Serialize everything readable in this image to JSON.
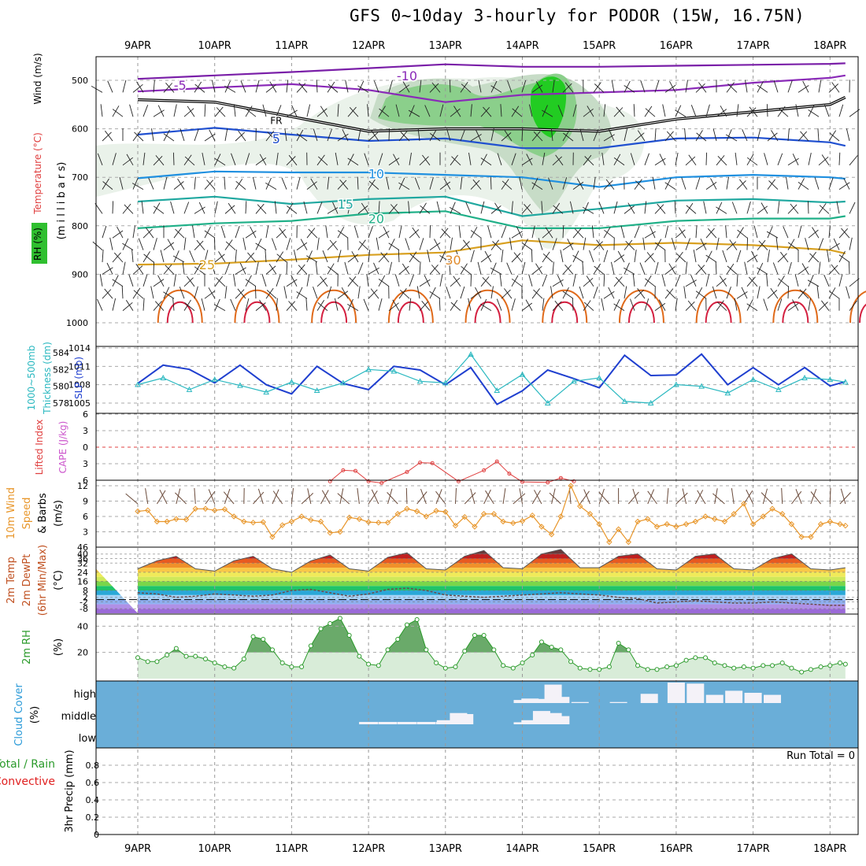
{
  "title": "GFS 0~10day 3-hourly for PODOR (15W, 16.75N)",
  "date_labels": [
    "9APR",
    "10APR",
    "11APR",
    "12APR",
    "13APR",
    "14APR",
    "15APR",
    "16APR",
    "17APR",
    "18APR"
  ],
  "run_total_label": "Run Total = 0",
  "colors": {
    "slp": "#1f3fcf",
    "thickness": "#2ab8c0",
    "cape": "#cc55cc",
    "lifted": "#e04040",
    "wind": "#e8962a",
    "rh": "#2a9a2a",
    "cloud_bg": "#6aaed8",
    "cloud_bar": "#f4f2f8",
    "precip_total": "#2a9a2a",
    "precip_conv": "#e02020"
  },
  "chart_data": [
    {
      "panel": "cross-section",
      "type": "heatmap",
      "ylabel": [
        "(m i l l i b a r s)",
        "Wind (m/s)",
        "Temperature (°C)",
        "RH (%)"
      ],
      "yticks": [
        500,
        600,
        700,
        800,
        900,
        1000
      ],
      "contour_labels": [
        {
          "text": "-10",
          "series": "temperature"
        },
        {
          "text": "-5",
          "series": "temperature"
        },
        {
          "text": "FR",
          "series": "freezing_level"
        },
        {
          "text": "5",
          "series": "temperature"
        },
        {
          "text": "10",
          "series": "temperature"
        },
        {
          "text": "15",
          "series": "temperature"
        },
        {
          "text": "20",
          "series": "temperature"
        },
        {
          "text": "25",
          "series": "temperature"
        },
        {
          "text": "30",
          "series": "temperature"
        }
      ],
      "isotherms": [
        {
          "name": "-10",
          "color": "#7a1fa8",
          "x": [
            0,
            1,
            2,
            3,
            4,
            5,
            6,
            7,
            8,
            9,
            9.2
          ],
          "y": [
            497,
            490,
            483,
            475,
            467,
            472,
            472,
            470,
            468,
            466,
            465
          ]
        },
        {
          "name": "-5",
          "color": "#8a2ab8",
          "x": [
            0,
            1,
            2,
            3,
            4,
            5,
            6,
            7,
            8,
            9,
            9.2
          ],
          "y": [
            523,
            515,
            508,
            520,
            545,
            530,
            525,
            520,
            505,
            495,
            490
          ]
        },
        {
          "name": "FR",
          "color": "#000000",
          "x": [
            0,
            1,
            2,
            3,
            4,
            5,
            6,
            7,
            8,
            9,
            9.2
          ],
          "y": [
            540,
            545,
            575,
            605,
            600,
            600,
            605,
            580,
            565,
            550,
            535
          ]
        },
        {
          "name": "5",
          "color": "#2050d0",
          "x": [
            0,
            1,
            2,
            3,
            4,
            5,
            6,
            7,
            8,
            9,
            9.2
          ],
          "y": [
            612,
            598,
            612,
            625,
            620,
            640,
            640,
            620,
            618,
            628,
            635
          ]
        },
        {
          "name": "10",
          "color": "#2090e0",
          "x": [
            0,
            1,
            2,
            3,
            4,
            5,
            6,
            7,
            8,
            9,
            9.2
          ],
          "y": [
            702,
            688,
            690,
            690,
            695,
            700,
            720,
            700,
            695,
            700,
            703
          ]
        },
        {
          "name": "15",
          "color": "#20a8a0",
          "x": [
            0,
            1,
            2,
            3,
            4,
            5,
            6,
            7,
            8,
            9,
            9.2
          ],
          "y": [
            750,
            740,
            755,
            745,
            740,
            780,
            765,
            748,
            745,
            752,
            750
          ]
        },
        {
          "name": "20",
          "color": "#20b088",
          "x": [
            0,
            1,
            2,
            3,
            4,
            5,
            6,
            7,
            8,
            9,
            9.2
          ],
          "y": [
            805,
            795,
            790,
            775,
            770,
            805,
            805,
            790,
            785,
            785,
            780
          ]
        },
        {
          "name": "25",
          "color": "#d8a020",
          "x": [
            0,
            1,
            2,
            3,
            4,
            5,
            6,
            7,
            8,
            9,
            9.2
          ],
          "y": [
            880,
            878,
            870,
            860,
            855,
            830,
            840,
            835,
            840,
            850,
            857
          ]
        }
      ]
    },
    {
      "panel": "slp-thickness",
      "type": "line",
      "ylabel": [
        "1000~500mb",
        "Thickness (dm)",
        "SLP (mb)"
      ],
      "slp_ticks": [
        1005,
        1008,
        1011,
        1014
      ],
      "thickness_ticks": [
        578,
        580,
        582,
        584
      ],
      "x": [
        0,
        0.33,
        0.67,
        1,
        1.33,
        1.67,
        2,
        2.33,
        2.67,
        3,
        3.33,
        3.67,
        4,
        4.33,
        4.67,
        5,
        5.33,
        5.67,
        6,
        6.33,
        6.67,
        7,
        7.33,
        7.67,
        8,
        8.33,
        8.67,
        9,
        9.2
      ],
      "series": [
        {
          "name": "SLP (mb)",
          "axis": "left",
          "values": [
            1008.2,
            1011.2,
            1010.5,
            1008.3,
            1011.2,
            1008.0,
            1006.5,
            1011.0,
            1008.2,
            1007.2,
            1011.0,
            1010.4,
            1008.0,
            1010.8,
            1004.8,
            1007.0,
            1010.4,
            1009.0,
            1007.5,
            1012.8,
            1009.5,
            1009.6,
            1013.0,
            1008.0,
            1010.8,
            1008.0,
            1010.8,
            1007.8,
            1008.5
          ]
        },
        {
          "name": "Thickness (dm)",
          "axis": "right",
          "values": [
            580.2,
            581.0,
            579.6,
            580.8,
            580.1,
            579.3,
            580.5,
            579.5,
            580.4,
            582.0,
            581.8,
            580.6,
            580.4,
            583.8,
            579.5,
            581.4,
            578.0,
            580.6,
            581.0,
            578.2,
            578.0,
            580.2,
            580.0,
            579.2,
            580.8,
            579.6,
            581.0,
            580.8,
            580.5
          ]
        }
      ]
    },
    {
      "panel": "cape-lifted",
      "type": "line",
      "ylabel": [
        "Lifted Index",
        "CAPE (J/kg)"
      ],
      "yticks": [
        -6,
        -3,
        0,
        3,
        6
      ],
      "x": [
        2.5,
        2.67,
        2.83,
        3.0,
        3.17,
        3.5,
        3.67,
        3.83,
        4.17,
        4.5,
        4.67,
        4.83,
        5.0,
        5.33,
        5.5,
        5.67
      ],
      "series": [
        {
          "name": "Lifted Index",
          "values": [
            6.2,
            4.2,
            4.3,
            6.2,
            6.5,
            4.5,
            2.8,
            2.9,
            6.2,
            4.2,
            2.6,
            4.8,
            6.3,
            6.4,
            5.6,
            6.2
          ]
        }
      ]
    },
    {
      "panel": "10m-wind",
      "type": "line",
      "ylabel": [
        "10m Wind",
        "Speed",
        "& Barbs",
        "(m/s)"
      ],
      "yticks": [
        3,
        6,
        9,
        12
      ],
      "x": [
        0,
        0.13,
        0.25,
        0.38,
        0.5,
        0.63,
        0.75,
        0.88,
        1,
        1.13,
        1.25,
        1.38,
        1.5,
        1.63,
        1.75,
        1.88,
        2,
        2.13,
        2.25,
        2.38,
        2.5,
        2.63,
        2.75,
        2.88,
        3,
        3.13,
        3.25,
        3.38,
        3.5,
        3.63,
        3.75,
        3.88,
        4,
        4.13,
        4.25,
        4.38,
        4.5,
        4.63,
        4.75,
        4.88,
        5,
        5.13,
        5.25,
        5.38,
        5.5,
        5.63,
        5.75,
        5.88,
        6,
        6.13,
        6.25,
        6.38,
        6.5,
        6.63,
        6.75,
        6.88,
        7,
        7.13,
        7.25,
        7.38,
        7.5,
        7.63,
        7.75,
        7.88,
        8,
        8.13,
        8.25,
        8.38,
        8.5,
        8.63,
        8.75,
        8.88,
        9,
        9.13,
        9.2
      ],
      "series": [
        {
          "name": "Wind speed",
          "values": [
            7.0,
            7.2,
            5.0,
            5.0,
            5.5,
            5.4,
            7.5,
            7.5,
            7.2,
            7.4,
            6.0,
            5.0,
            4.8,
            4.9,
            2.0,
            4.3,
            5.0,
            6.0,
            5.3,
            5.0,
            2.8,
            3.0,
            5.8,
            5.5,
            4.9,
            4.8,
            4.8,
            6.5,
            7.5,
            7.0,
            6.0,
            7.1,
            6.9,
            4.2,
            5.9,
            4.0,
            6.5,
            6.5,
            5.0,
            4.7,
            5.1,
            6.2,
            4.0,
            2.5,
            6.0,
            12.0,
            8.0,
            6.5,
            4.5,
            1.0,
            3.5,
            1.0,
            5.0,
            5.5,
            4.0,
            4.5,
            4.0,
            4.5,
            5.0,
            6.0,
            5.5,
            5.0,
            6.5,
            8.5,
            4.5,
            6.0,
            7.5,
            6.5,
            4.5,
            2.0,
            2.0,
            4.5,
            5.0,
            4.5,
            4.2
          ]
        }
      ]
    },
    {
      "panel": "2m-temp",
      "type": "area",
      "ylabel": [
        "2m Temp",
        "2m DewPt",
        "(6hr Min/Max)",
        "(°C)"
      ],
      "yticks": [
        -8,
        -2,
        2,
        8,
        16,
        24,
        32,
        36,
        40,
        46
      ],
      "x": [
        0,
        0.25,
        0.5,
        0.75,
        1,
        1.25,
        1.5,
        1.75,
        2,
        2.25,
        2.5,
        2.75,
        3,
        3.25,
        3.5,
        3.75,
        4,
        4.25,
        4.5,
        4.75,
        5,
        5.25,
        5.5,
        5.75,
        6,
        6.25,
        6.5,
        6.75,
        7,
        7.25,
        7.5,
        7.75,
        8,
        8.25,
        8.5,
        8.75,
        9,
        9.2
      ],
      "series": [
        {
          "name": "2m Temp",
          "values": [
            27,
            34,
            38,
            27,
            25,
            34,
            38,
            27,
            24,
            34,
            39,
            27,
            25,
            37,
            41,
            27,
            26,
            38,
            43,
            28,
            27,
            40,
            44,
            28,
            28,
            38,
            40,
            27,
            26,
            38,
            40,
            27,
            26,
            36,
            40,
            27,
            26,
            28
          ]
        },
        {
          "name": "2m DewPt",
          "values": [
            6,
            5,
            2,
            3,
            5,
            4,
            3,
            4,
            8,
            9,
            6,
            3,
            5,
            9,
            10,
            8,
            4,
            3,
            2,
            3,
            4,
            5,
            6,
            5,
            4,
            2,
            1,
            -3,
            -2,
            -1,
            -2,
            -3,
            -3,
            -2,
            -3,
            -4,
            -5,
            -5
          ]
        }
      ]
    },
    {
      "panel": "2m-rh",
      "type": "area",
      "ylabel": [
        "2m RH",
        "(%)"
      ],
      "yticks": [
        20,
        40
      ],
      "x": [
        0,
        0.13,
        0.25,
        0.38,
        0.5,
        0.63,
        0.75,
        0.88,
        1,
        1.13,
        1.25,
        1.38,
        1.5,
        1.63,
        1.75,
        1.88,
        2,
        2.13,
        2.25,
        2.38,
        2.5,
        2.63,
        2.75,
        2.88,
        3,
        3.13,
        3.25,
        3.38,
        3.5,
        3.63,
        3.75,
        3.88,
        4,
        4.13,
        4.25,
        4.38,
        4.5,
        4.63,
        4.75,
        4.88,
        5,
        5.13,
        5.25,
        5.38,
        5.5,
        5.63,
        5.75,
        5.88,
        6,
        6.13,
        6.25,
        6.38,
        6.5,
        6.63,
        6.75,
        6.88,
        7,
        7.13,
        7.25,
        7.38,
        7.5,
        7.63,
        7.75,
        7.88,
        8,
        8.13,
        8.25,
        8.38,
        8.5,
        8.63,
        8.75,
        8.88,
        9,
        9.13,
        9.2
      ],
      "series": [
        {
          "name": "2m RH",
          "values": [
            16,
            13,
            13,
            18,
            23,
            17,
            17,
            15,
            12,
            9,
            8,
            15,
            32,
            30,
            22,
            12,
            9,
            9,
            25,
            38,
            42,
            46,
            33,
            17,
            11,
            10,
            22,
            30,
            41,
            45,
            22,
            12,
            8,
            9,
            21,
            33,
            33,
            22,
            10,
            8,
            12,
            18,
            28,
            24,
            22,
            13,
            8,
            7,
            7,
            9,
            27,
            22,
            10,
            7,
            7,
            9,
            10,
            14,
            16,
            16,
            12,
            10,
            8,
            9,
            8,
            10,
            10,
            12,
            8,
            5,
            7,
            9,
            10,
            12,
            11
          ]
        }
      ]
    },
    {
      "panel": "cloud-cover",
      "type": "bar",
      "ylabel": [
        "Cloud Cover",
        "(%)"
      ],
      "levels": [
        "high",
        "middle",
        "low"
      ],
      "x": [
        3.0,
        3.25,
        3.5,
        3.75,
        4.0,
        4.17,
        4.25,
        4.35,
        5.0,
        5.1,
        5.25,
        5.4,
        5.5,
        5.75,
        6.25,
        6.65,
        6.75,
        7.0,
        7.25,
        7.5,
        7.75,
        8.0,
        8.25,
        8.5,
        8.65
      ],
      "series": [
        {
          "name": "high",
          "values": [
            0,
            0,
            0,
            0,
            0,
            0,
            0,
            0,
            15,
            22,
            20,
            90,
            30,
            5,
            5,
            45,
            0,
            100,
            95,
            40,
            60,
            50,
            40,
            0,
            0
          ]
        },
        {
          "name": "middle",
          "values": [
            0,
            0,
            0,
            0,
            20,
            55,
            50,
            0,
            10,
            20,
            65,
            55,
            40,
            0,
            0,
            0,
            0,
            0,
            0,
            0,
            0,
            0,
            0,
            0,
            0
          ]
        },
        {
          "name": "low",
          "values": [
            0,
            0,
            0,
            0,
            0,
            0,
            0,
            0,
            0,
            0,
            0,
            0,
            0,
            0,
            0,
            0,
            0,
            0,
            0,
            0,
            0,
            0,
            0,
            0,
            0
          ]
        }
      ]
    },
    {
      "panel": "precip",
      "type": "bar",
      "ylabel": [
        "Total / Rain",
        "Convective",
        "3hr Precip (mm)"
      ],
      "yticks": [
        0,
        0.2,
        0.4,
        0.6,
        0.8
      ],
      "ylim": [
        0,
        0.9
      ],
      "series": [
        {
          "name": "Total / Rain",
          "values": []
        },
        {
          "name": "Convective",
          "values": []
        }
      ]
    }
  ]
}
